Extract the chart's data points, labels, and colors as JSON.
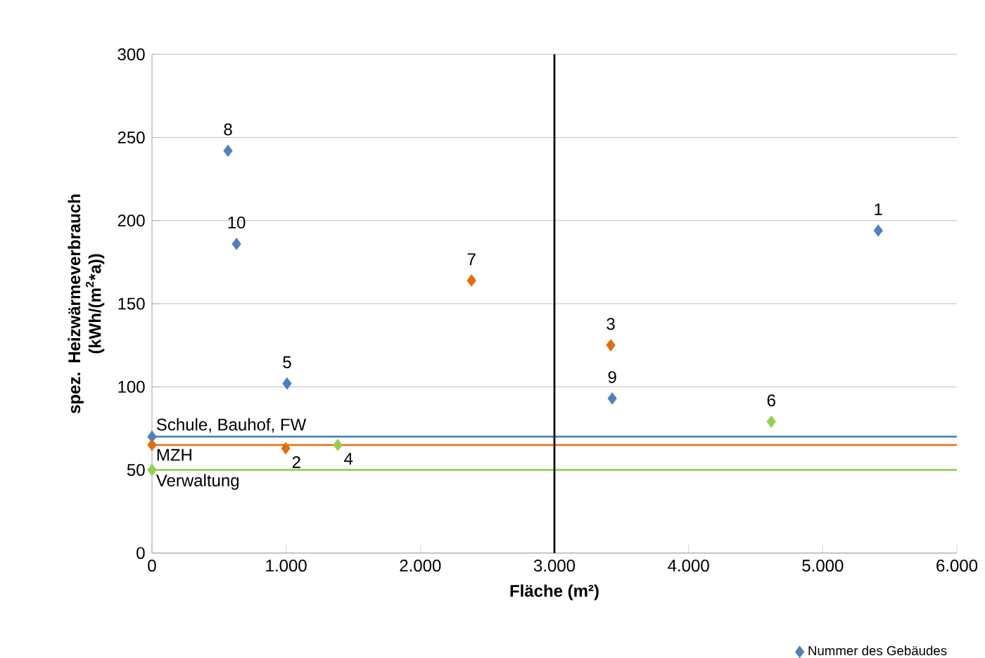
{
  "chart_data": {
    "type": "scatter",
    "xlabel": "Fläche  (m²)",
    "ylabel": "spez. Heizwärmeverbrauch (kWh/(m$^{2}$*a))",
    "x": [
      5414,
      997,
      3420,
      1385,
      1007,
      4617,
      2382,
      567,
      3431,
      630,
      0,
      0,
      0
    ],
    "series": [
      {
        "name": "Nummer des Gebäudes",
        "color": "#4f81bd",
        "values": [
          194,
          63,
          125,
          65,
          102,
          79,
          164,
          242,
          93,
          186,
          70,
          65,
          50
        ],
        "colors": [
          "#4f81bd",
          "#e46c0a",
          "#e46c0a",
          "#92d050",
          "#4f81bd",
          "#92d050",
          "#e46c0a",
          "#4f81bd",
          "#4f81bd",
          "#4f81bd",
          "#4f81bd",
          "#e46c0a",
          "#92d050"
        ]
      }
    ],
    "annotations": [
      {
        "text": "1",
        "x": 5414,
        "y": 194
      },
      {
        "text": "2",
        "x": 997,
        "y": 63
      },
      {
        "text": "3",
        "x": 3420,
        "y": 125
      },
      {
        "text": "4",
        "x": 1385,
        "y": 65
      },
      {
        "text": "5",
        "x": 1007,
        "y": 102
      },
      {
        "text": "6",
        "x": 4617,
        "y": 79
      },
      {
        "text": "7",
        "x": 2382,
        "y": 164
      },
      {
        "text": "8",
        "x": 567,
        "y": 242
      },
      {
        "text": "9",
        "x": 3431,
        "y": 93
      },
      {
        "text": "10",
        "x": 630,
        "y": 186
      }
    ],
    "xlim": [
      0,
      6000
    ],
    "xticks": [
      {
        "value": 0,
        "label": "0"
      },
      {
        "value": 1000,
        "label": "1.000"
      },
      {
        "value": 2000,
        "label": "2.000"
      },
      {
        "value": 3000,
        "label": "3.000"
      },
      {
        "value": 4000,
        "label": "4.000"
      },
      {
        "value": 5000,
        "label": "5.000"
      },
      {
        "value": 6000,
        "label": "6.000"
      }
    ],
    "ylim": [
      0,
      300
    ],
    "yticks": [
      0,
      50,
      100,
      150,
      200,
      250,
      300
    ],
    "ref_lines": [
      {
        "axis": "y",
        "value": 70,
        "label": "Schule, Bauhof, FW",
        "color": "#4f81bd"
      },
      {
        "axis": "y",
        "value": 65,
        "label": "MZH",
        "color": "#e46c0a"
      },
      {
        "axis": "y",
        "value": 50,
        "label": "Verwaltung",
        "color": "#92d050"
      },
      {
        "axis": "x",
        "value": 3000,
        "color": "#000000"
      }
    ],
    "grid": "y",
    "legend": "bottom right",
    "marker": "diamond"
  }
}
